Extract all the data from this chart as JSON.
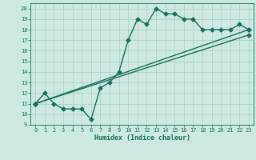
{
  "title": "",
  "xlabel": "Humidex (Indice chaleur)",
  "xlim": [
    -0.5,
    23.5
  ],
  "ylim": [
    9,
    20.5
  ],
  "xticks": [
    0,
    1,
    2,
    3,
    4,
    5,
    6,
    7,
    8,
    9,
    10,
    11,
    12,
    13,
    14,
    15,
    16,
    17,
    18,
    19,
    20,
    21,
    22,
    23
  ],
  "yticks": [
    9,
    10,
    11,
    12,
    13,
    14,
    15,
    16,
    17,
    18,
    19,
    20
  ],
  "bg_color": "#cce8e0",
  "grid_color": "#aacfc7",
  "line_color": "#1a7060",
  "series1_x": [
    0,
    1,
    2,
    3,
    4,
    5,
    6,
    7,
    8,
    9,
    10,
    11,
    12,
    13,
    14,
    15,
    16,
    17,
    18,
    19,
    20,
    21,
    22,
    23
  ],
  "series1_y": [
    11,
    12,
    11,
    10.5,
    10.5,
    10.5,
    9.5,
    12.5,
    13,
    14,
    17,
    19,
    18.5,
    20,
    19.5,
    19.5,
    19,
    19,
    18,
    18,
    18,
    18,
    18.5,
    18
  ],
  "series2_x": [
    0,
    23
  ],
  "series2_y": [
    11,
    18
  ],
  "series3_x": [
    0,
    23
  ],
  "series3_y": [
    11,
    17.5
  ],
  "marker": "D",
  "markersize": 2.5,
  "linewidth": 1.0
}
